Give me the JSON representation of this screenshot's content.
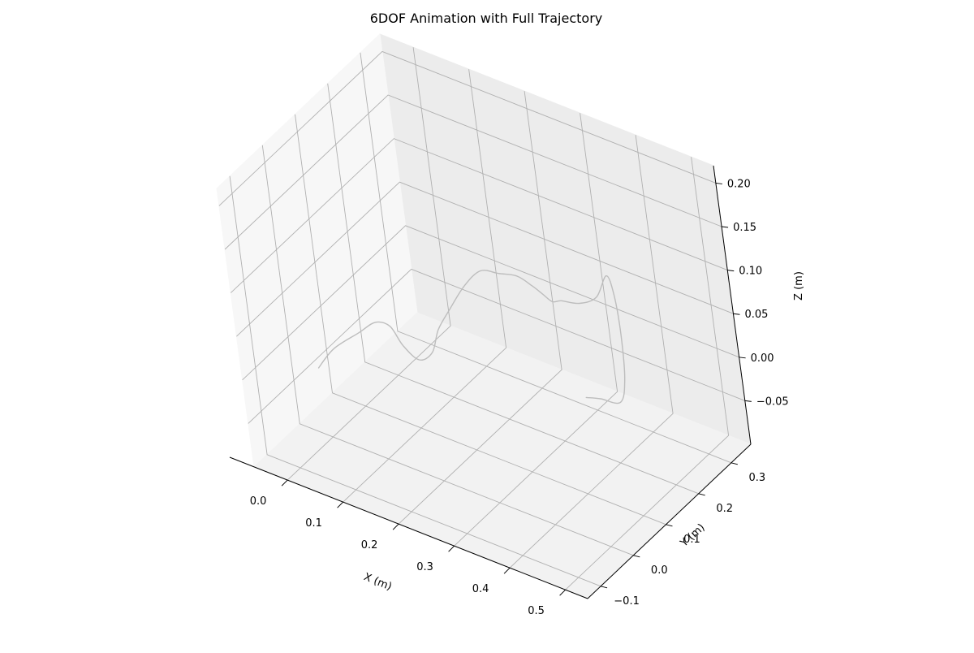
{
  "chart_data": {
    "type": "line",
    "projection": "3d",
    "title": "6DOF Animation with Full Trajectory",
    "xlabel": "X (m)",
    "ylabel": "Y (m)",
    "zlabel": "Z (m)",
    "xlim": [
      -0.06,
      0.54
    ],
    "ylim": [
      -0.14,
      0.36
    ],
    "zlim": [
      -0.1,
      0.22
    ],
    "xticks": [
      "0.0",
      "0.1",
      "0.2",
      "0.3",
      "0.4",
      "0.5"
    ],
    "yticks": [
      "−0.1",
      "0.0",
      "0.1",
      "0.2",
      "0.3"
    ],
    "zticks": [
      "−0.05",
      "0.00",
      "0.05",
      "0.10",
      "0.15",
      "0.20"
    ],
    "grid": true,
    "line_color": "#bdbdbd",
    "series": [
      {
        "points": [
          [
            0.06,
            -0.1,
            0.03
          ],
          [
            0.08,
            -0.08,
            0.05
          ],
          [
            0.11,
            -0.05,
            0.065
          ],
          [
            0.13,
            -0.03,
            0.075
          ],
          [
            0.15,
            -0.02,
            0.072
          ],
          [
            0.17,
            -0.02,
            0.055
          ],
          [
            0.19,
            -0.01,
            0.04
          ],
          [
            0.21,
            0.0,
            0.05
          ],
          [
            0.22,
            0.01,
            0.075
          ],
          [
            0.24,
            0.02,
            0.1
          ],
          [
            0.26,
            0.04,
            0.125
          ],
          [
            0.28,
            0.06,
            0.14
          ],
          [
            0.3,
            0.08,
            0.135
          ],
          [
            0.32,
            0.1,
            0.13
          ],
          [
            0.34,
            0.11,
            0.12
          ],
          [
            0.35,
            0.12,
            0.11
          ],
          [
            0.36,
            0.13,
            0.1
          ],
          [
            0.37,
            0.14,
            0.1
          ],
          [
            0.39,
            0.16,
            0.095
          ],
          [
            0.41,
            0.18,
            0.1
          ],
          [
            0.42,
            0.2,
            0.12
          ],
          [
            0.43,
            0.2,
            0.1
          ],
          [
            0.44,
            0.19,
            0.06
          ],
          [
            0.45,
            0.17,
            0.02
          ],
          [
            0.45,
            0.15,
            0.0
          ],
          [
            0.42,
            0.14,
            0.0
          ],
          [
            0.4,
            0.13,
            0.0
          ]
        ]
      }
    ]
  }
}
